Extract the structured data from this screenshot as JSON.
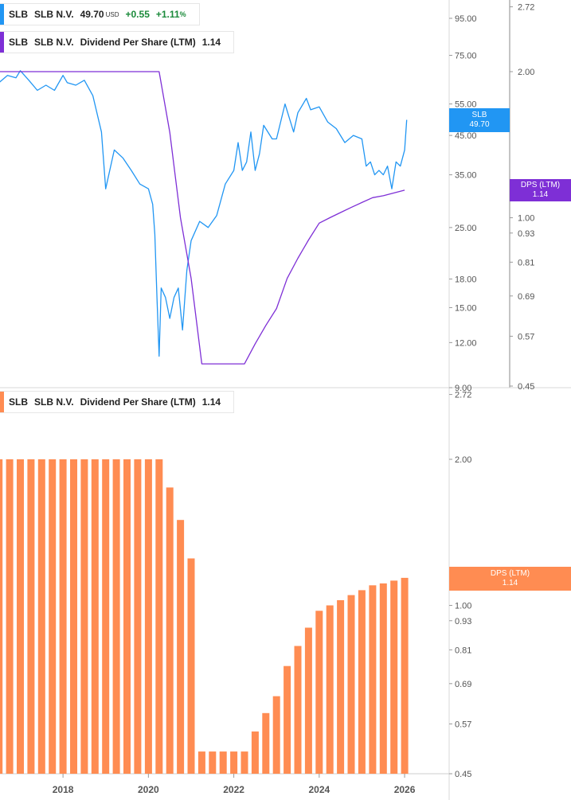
{
  "legend_price": {
    "ticker": "SLB",
    "company": "SLB N.V.",
    "price": "49.70",
    "currency": "USD",
    "change": "+0.55",
    "change_pct": "+1.11",
    "pct_sign": "%",
    "color": "#2196f3"
  },
  "legend_dps_top": {
    "ticker": "SLB",
    "company": "SLB N.V.",
    "metric": "Dividend Per Share (LTM)",
    "value": "1.14",
    "color": "#7e2fd6"
  },
  "legend_dps_bottom": {
    "ticker": "SLB",
    "company": "SLB N.V.",
    "metric": "Dividend Per Share (LTM)",
    "value": "1.14",
    "color": "#ff8c52"
  },
  "tags": {
    "slb": {
      "label": "SLB",
      "value": "49.70",
      "color": "#2196f3"
    },
    "dps_top": {
      "label": "DPS (LTM)",
      "value": "1.14",
      "color": "#7e2fd6"
    },
    "dps_bottom": {
      "label": "DPS (LTM)",
      "value": "1.14",
      "color": "#ff8c52"
    }
  },
  "chart_data": [
    {
      "type": "line",
      "scale": "log",
      "series": [
        {
          "name": "SLB",
          "color": "#2196f3",
          "x": [
            2016.5,
            2016.7,
            2016.9,
            2017.0,
            2017.2,
            2017.4,
            2017.6,
            2017.8,
            2018.0,
            2018.1,
            2018.3,
            2018.5,
            2018.7,
            2018.9,
            2019.0,
            2019.2,
            2019.4,
            2019.6,
            2019.8,
            2020.0,
            2020.1,
            2020.15,
            2020.2,
            2020.25,
            2020.3,
            2020.4,
            2020.5,
            2020.6,
            2020.7,
            2020.8,
            2020.9,
            2021.0,
            2021.2,
            2021.4,
            2021.6,
            2021.8,
            2022.0,
            2022.1,
            2022.2,
            2022.3,
            2022.4,
            2022.5,
            2022.6,
            2022.7,
            2022.9,
            2023.0,
            2023.2,
            2023.4,
            2023.5,
            2023.7,
            2023.8,
            2024.0,
            2024.2,
            2024.4,
            2024.6,
            2024.8,
            2025.0,
            2025.1,
            2025.2,
            2025.3,
            2025.4,
            2025.5,
            2025.6,
            2025.7,
            2025.8,
            2025.9,
            2026.0,
            2026.05
          ],
          "y": [
            63,
            66,
            65,
            68,
            64,
            60,
            62,
            60,
            66,
            63,
            62,
            64,
            58,
            46,
            32,
            41,
            39,
            36,
            33,
            32,
            29,
            24,
            16,
            11,
            17,
            16,
            14,
            16,
            17,
            13,
            19,
            23,
            26,
            25,
            27,
            33,
            36,
            43,
            36,
            38,
            46,
            36,
            40,
            48,
            44,
            44,
            55,
            46,
            52,
            57,
            53,
            54,
            49,
            47,
            43,
            45,
            44,
            37,
            38,
            35,
            36,
            35,
            37,
            32,
            38,
            37,
            41,
            49.7
          ]
        },
        {
          "name": "DPS (LTM)",
          "color": "#7e2fd6",
          "x": [
            2016.5,
            2020.25,
            2020.5,
            2020.75,
            2021.0,
            2021.25,
            2022.25,
            2022.5,
            2022.75,
            2023.0,
            2023.25,
            2023.5,
            2023.75,
            2024.0,
            2024.25,
            2024.5,
            2024.75,
            2025.0,
            2025.25,
            2025.5,
            2025.75,
            2026.0
          ],
          "y": [
            2.0,
            2.0,
            1.5,
            1.0,
            0.75,
            0.5,
            0.5,
            0.55,
            0.6,
            0.65,
            0.75,
            0.825,
            0.9,
            0.975,
            1.0,
            1.025,
            1.05,
            1.075,
            1.1,
            1.11,
            1.125,
            1.14
          ]
        }
      ],
      "y_ticks": [
        "95.00",
        "75.00",
        "55.00",
        "45.00",
        "35.00",
        "25.00",
        "18.00",
        "15.00",
        "12.00",
        "9.00"
      ],
      "y2_ticks": [
        "2.72",
        "2.00",
        "1.00",
        "0.93",
        "0.81",
        "0.69",
        "0.57",
        "0.45"
      ]
    },
    {
      "type": "bar",
      "scale": "log",
      "series": [
        {
          "name": "DPS (LTM)",
          "color": "#ff8c52",
          "x": [
            2016.5,
            2016.75,
            2017.0,
            2017.25,
            2017.5,
            2017.75,
            2018.0,
            2018.25,
            2018.5,
            2018.75,
            2019.0,
            2019.25,
            2019.5,
            2019.75,
            2020.0,
            2020.25,
            2020.5,
            2020.75,
            2021.0,
            2021.25,
            2021.5,
            2021.75,
            2022.0,
            2022.25,
            2022.5,
            2022.75,
            2023.0,
            2023.25,
            2023.5,
            2023.75,
            2024.0,
            2024.25,
            2024.5,
            2024.75,
            2025.0,
            2025.25,
            2025.5,
            2025.75,
            2026.0
          ],
          "values": [
            2.0,
            2.0,
            2.0,
            2.0,
            2.0,
            2.0,
            2.0,
            2.0,
            2.0,
            2.0,
            2.0,
            2.0,
            2.0,
            2.0,
            2.0,
            2.0,
            1.75,
            1.5,
            1.25,
            0.5,
            0.5,
            0.5,
            0.5,
            0.5,
            0.55,
            0.6,
            0.65,
            0.75,
            0.825,
            0.9,
            0.975,
            1.0,
            1.025,
            1.05,
            1.075,
            1.1,
            1.11,
            1.125,
            1.14
          ]
        }
      ],
      "y_ticks": [
        "2.72",
        "2.00",
        "1.00",
        "0.93",
        "0.81",
        "0.69",
        "0.57",
        "0.45"
      ],
      "x_ticks": [
        "2018",
        "2020",
        "2022",
        "2024",
        "2026"
      ]
    }
  ]
}
